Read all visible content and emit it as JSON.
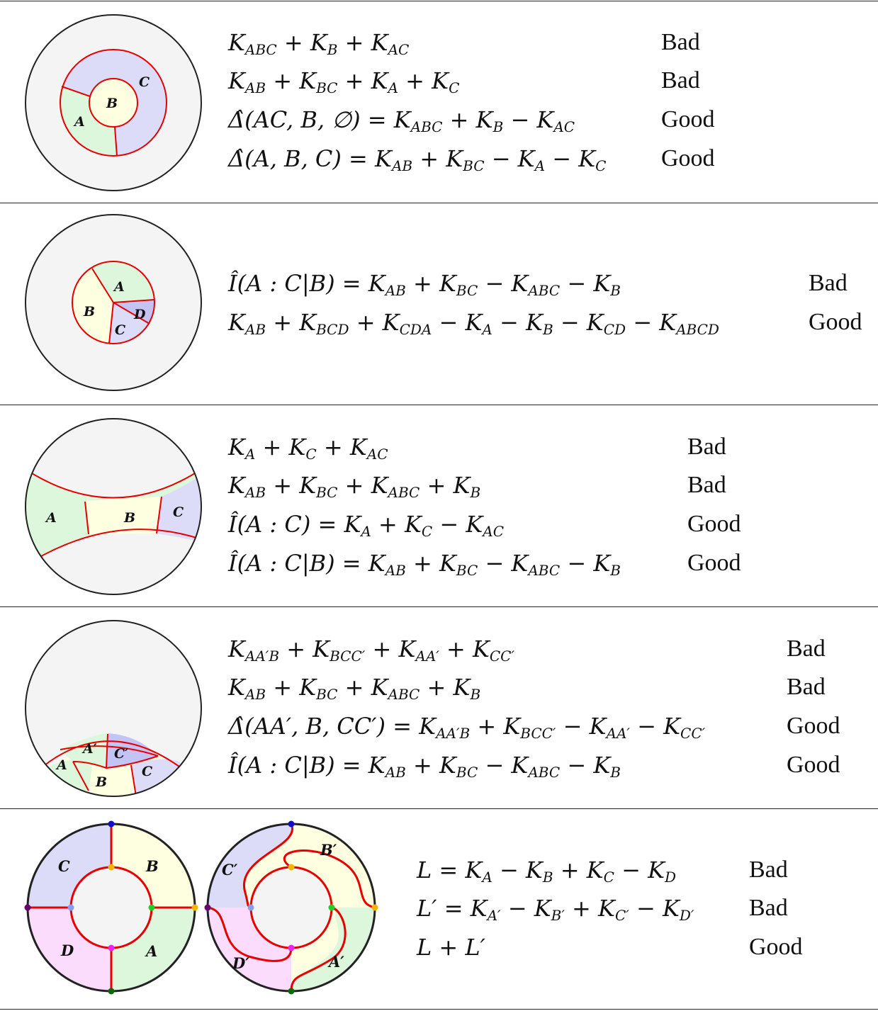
{
  "rows": [
    {
      "regions": [
        "A",
        "B",
        "C"
      ],
      "entries": [
        {
          "expr": "K<sub>ABC</sub> + K<sub>B</sub> + K<sub>AC</sub>",
          "verdict": "Bad"
        },
        {
          "expr": "K<sub>AB</sub> + K<sub>BC</sub> + K<sub>A</sub> + K<sub>C</sub>",
          "verdict": "Bad"
        },
        {
          "expr": "Δ̂(AC, B, ∅) = K<sub>ABC</sub> + K<sub>B</sub> − K<sub>AC</sub>",
          "verdict": "Good"
        },
        {
          "expr": "Δ̂(A, B, C) = K<sub>AB</sub> + K<sub>BC</sub> − K<sub>A</sub> − K<sub>C</sub>",
          "verdict": "Good"
        }
      ]
    },
    {
      "regions": [
        "A",
        "B",
        "C",
        "D"
      ],
      "entries": [
        {
          "expr": "Î(A : C|B) = K<sub>AB</sub> + K<sub>BC</sub> − K<sub>ABC</sub> − K<sub>B</sub>",
          "verdict": "Bad"
        },
        {
          "expr": "K<sub>AB</sub> + K<sub>BCD</sub> + K<sub>CDA</sub> − K<sub>A</sub> − K<sub>B</sub> − K<sub>CD</sub> − K<sub>ABCD</sub>",
          "verdict": "Good"
        }
      ]
    },
    {
      "regions": [
        "A",
        "B",
        "C"
      ],
      "entries": [
        {
          "expr": "K<sub>A</sub> + K<sub>C</sub> + K<sub>AC</sub>",
          "verdict": "Bad"
        },
        {
          "expr": "K<sub>AB</sub> + K<sub>BC</sub> + K<sub>ABC</sub> + K<sub>B</sub>",
          "verdict": "Bad"
        },
        {
          "expr": "Î(A : C) = K<sub>A</sub> + K<sub>C</sub> − K<sub>AC</sub>",
          "verdict": "Good"
        },
        {
          "expr": "Î(A : C|B) = K<sub>AB</sub> + K<sub>BC</sub> − K<sub>ABC</sub> − K<sub>B</sub>",
          "verdict": "Good"
        }
      ]
    },
    {
      "regions": [
        "A",
        "A′",
        "B",
        "C",
        "C′"
      ],
      "entries": [
        {
          "expr": "K<sub>AA′B</sub> + K<sub>BCC′</sub> + K<sub>AA′</sub> + K<sub>CC′</sub>",
          "verdict": "Bad"
        },
        {
          "expr": "K<sub>AB</sub> + K<sub>BC</sub> + K<sub>ABC</sub> + K<sub>B</sub>",
          "verdict": "Bad"
        },
        {
          "expr": "Δ̂(AA′, B, CC′) = K<sub>AA′B</sub> + K<sub>BCC′</sub> − K<sub>AA′</sub> − K<sub>CC′</sub>",
          "verdict": "Good"
        },
        {
          "expr": "Î(A : C|B) = K<sub>AB</sub> + K<sub>BC</sub> − K<sub>ABC</sub> − K<sub>B</sub>",
          "verdict": "Good"
        }
      ]
    },
    {
      "regions": [
        "A",
        "B",
        "C",
        "D"
      ],
      "regions_primed": [
        "A′",
        "B′",
        "C′",
        "D′"
      ],
      "entries": [
        {
          "expr": "L = K<sub>A</sub> − K<sub>B</sub> + K<sub>C</sub> − K<sub>D</sub>",
          "verdict": "Bad"
        },
        {
          "expr": "L′ = K<sub>A′</sub> − K<sub>B′</sub> + K<sub>C′</sub> − K<sub>D′</sub>",
          "verdict": "Bad"
        },
        {
          "expr": "L + L′",
          "verdict": "Good"
        }
      ]
    }
  ],
  "colors": {
    "region_A": "#dcf7dc",
    "region_B": "#fefee0",
    "region_C": "#dcdcf8",
    "region_D": "#fcdcfc",
    "region_C_prime": "#c4c4f4",
    "bulk": "#f4f4f4",
    "boundary_line": "#e60000",
    "outline": "#222222"
  }
}
